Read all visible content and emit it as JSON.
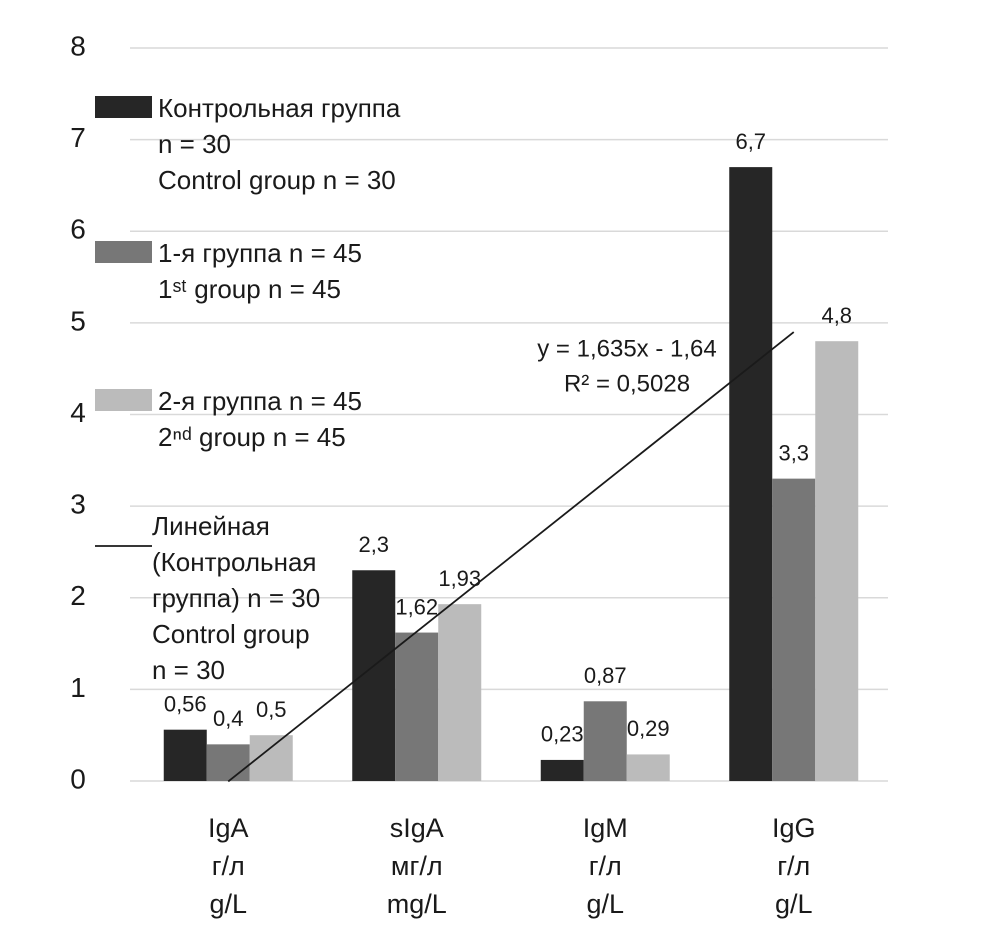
{
  "chart_data": {
    "type": "bar",
    "categories": [
      [
        "IgA",
        "г/л",
        "g/L"
      ],
      [
        "sIgA",
        "мг/л",
        "mg/L"
      ],
      [
        "IgM",
        "г/л",
        "g/L"
      ],
      [
        "IgG",
        "г/л",
        "g/L"
      ]
    ],
    "series": [
      {
        "name": "Контрольная группа\nn = 30\nControl group n = 30",
        "color": "#262626",
        "values": [
          0.56,
          2.3,
          0.23,
          6.7
        ],
        "value_labels": [
          "0,56",
          "2,3",
          "0,23",
          "6,7"
        ]
      },
      {
        "name": "1-я группа n = 45\n1ˢᵗ group n = 45",
        "color": "#777777",
        "values": [
          0.4,
          1.62,
          0.87,
          3.3
        ],
        "value_labels": [
          "0,4",
          "1,62",
          "0,87",
          "3,3"
        ]
      },
      {
        "name": "2-я группа n = 45\n2ⁿᵈ group n = 45",
        "color": "#bbbbbb",
        "values": [
          0.5,
          1.93,
          0.29,
          4.8
        ],
        "value_labels": [
          "0,5",
          "1,93",
          "0,29",
          "4,8"
        ]
      }
    ],
    "trendline": {
      "name": "Линейная\n(Контрольная\nгруппа) n = 30\nControl group\nn = 30",
      "color": "#1a1a1a",
      "slope": 1.635,
      "intercept": -1.64,
      "equation": [
        "y = 1,635x - 1,64",
        "R² = 0,5028"
      ]
    },
    "ylim": [
      0,
      8
    ],
    "yticks": [
      0,
      1,
      2,
      3,
      4,
      5,
      6,
      7,
      8
    ],
    "grid": true
  }
}
